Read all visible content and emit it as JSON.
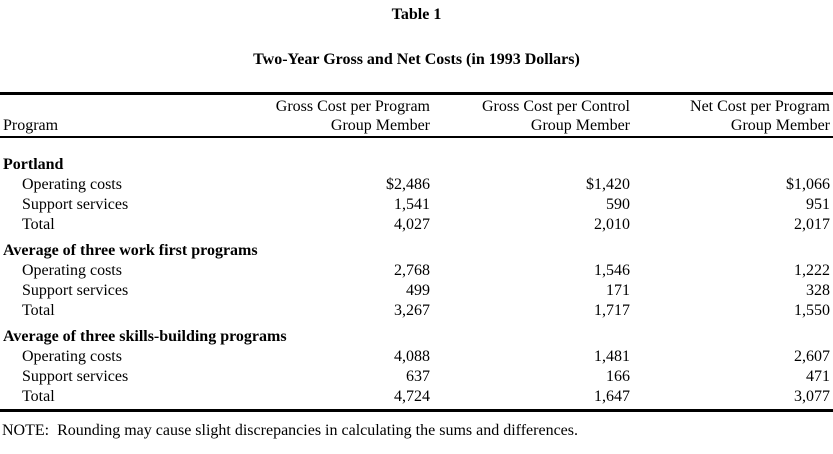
{
  "title": "Table 1",
  "subtitle": "Two-Year Gross and Net Costs (in 1993 Dollars)",
  "colors": {
    "text": "#000000",
    "background": "#ffffff",
    "rule": "#000000"
  },
  "table": {
    "header": {
      "program_label": "Program",
      "columns": [
        {
          "line1": "Gross Cost per Program",
          "line2": "Group Member"
        },
        {
          "line1": "Gross Cost per Control",
          "line2": "Group Member"
        },
        {
          "line1": "Net Cost per Program",
          "line2": "Group Member"
        }
      ]
    },
    "sections": [
      {
        "name": "Portland",
        "rows": [
          {
            "label": "Operating costs",
            "values": [
              "$2,486",
              "$1,420",
              "$1,066"
            ]
          },
          {
            "label": "Support services",
            "values": [
              "1,541",
              "590",
              "951"
            ]
          },
          {
            "label": "Total",
            "values": [
              "4,027",
              "2,010",
              "2,017"
            ]
          }
        ]
      },
      {
        "name": "Average of three work first programs",
        "rows": [
          {
            "label": "Operating costs",
            "values": [
              "2,768",
              "1,546",
              "1,222"
            ]
          },
          {
            "label": "Support services",
            "values": [
              "499",
              "171",
              "328"
            ]
          },
          {
            "label": "Total",
            "values": [
              "3,267",
              "1,717",
              "1,550"
            ]
          }
        ]
      },
      {
        "name": "Average of three skills-building programs",
        "rows": [
          {
            "label": "Operating costs",
            "values": [
              "4,088",
              "1,481",
              "2,607"
            ]
          },
          {
            "label": "Support services",
            "values": [
              "637",
              "166",
              "471"
            ]
          },
          {
            "label": "Total",
            "values": [
              "4,724",
              "1,647",
              "3,077"
            ]
          }
        ]
      }
    ]
  },
  "note": "NOTE:  Rounding may cause slight discrepancies in calculating the sums and differences."
}
